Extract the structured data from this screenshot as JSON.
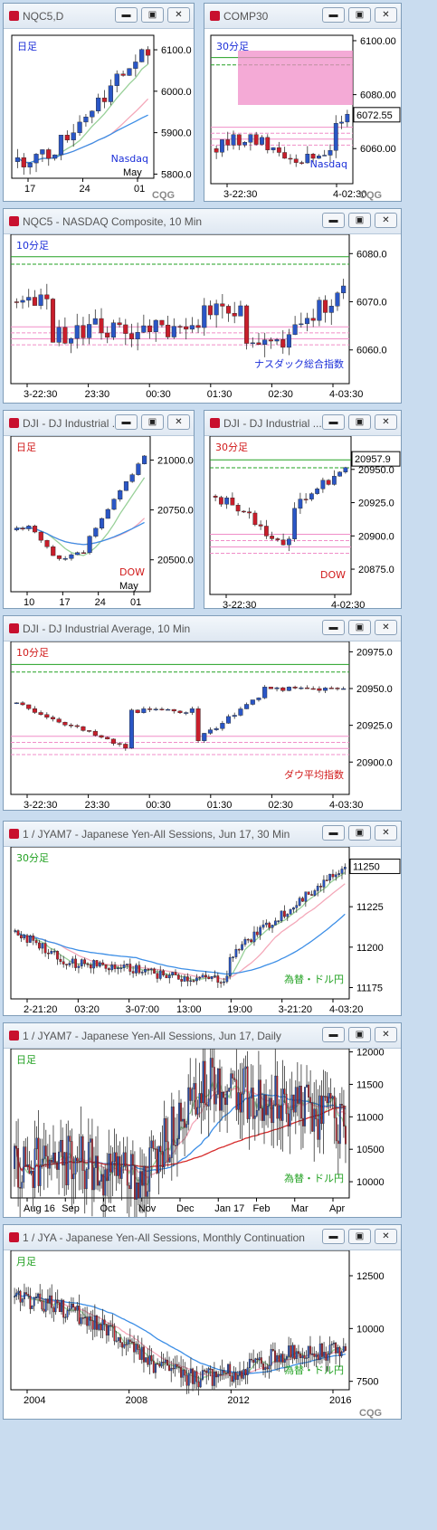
{
  "colors": {
    "up": "#2a56c6",
    "down": "#c81e2b",
    "ma1": "#98d098",
    "ma2": "#f4a8b9",
    "ma3": "#3c8ee6",
    "ma4": "#d62b2b",
    "pink": "#f08ec8",
    "green": "#22a122",
    "text_jp": "#1c2fd8",
    "red_text": "#d11a1a"
  },
  "icons": {
    "minimize": "minimize-icon",
    "restore": "restore-icon",
    "close": "close-icon",
    "logo": "cqg-logo"
  },
  "panels": [
    {
      "id": "nqc5-daily",
      "title": "NQC5,D",
      "label": "日足",
      "label_color": "#1c2fd8",
      "name": "Nasdaq",
      "name_color": "#1c2fd8",
      "yticks": [
        "6100.0",
        "6000.0",
        "5900.0",
        "5800.0"
      ],
      "xticks": [
        "17",
        "24",
        "01"
      ],
      "xsub": "May",
      "logo": "CQG",
      "chart_data": {
        "type": "candlestick",
        "trend": "up",
        "ylim": [
          5790,
          6135
        ],
        "yticks": [
          6100,
          6000,
          5900,
          5800
        ],
        "first_close": 5830,
        "last_close": 6090
      }
    },
    {
      "id": "comp-30",
      "title": "COMP30",
      "label": "30分足",
      "label_color": "#1c2fd8",
      "name": "Nasdaq",
      "name_color": "#1c2fd8",
      "yticks": [
        "6100.00",
        "6080.00",
        "6060.00"
      ],
      "last": "6072.55",
      "xticks": [
        "3-22:30",
        "4-02:30"
      ],
      "logo": "CQG",
      "chart_data": {
        "type": "candlestick",
        "ylim": [
          6047,
          6102
        ],
        "yticks": [
          6100,
          6080,
          6060
        ],
        "last": 6072.55
      }
    },
    {
      "id": "nqc5-10",
      "title": "NQC5 - NASDAQ Composite, 10 Min",
      "label": "10分足",
      "label_color": "#1c2fd8",
      "name": "ナスダック総合指数",
      "name_color": "#1c2fd8",
      "yticks": [
        "6080.0",
        "6070.0",
        "6060.0"
      ],
      "xticks": [
        "3-22:30",
        "23:30",
        "00:30",
        "01:30",
        "02:30",
        "4-03:30"
      ],
      "chart_data": {
        "type": "candlestick",
        "ylim": [
          6053,
          6084
        ],
        "yticks": [
          6080,
          6070,
          6060
        ]
      }
    },
    {
      "id": "dji-daily",
      "title": "DJI - DJ Industrial ...",
      "label": "日足",
      "label_color": "#d11a1a",
      "name": "DOW",
      "name_color": "#d11a1a",
      "yticks": [
        "21000.0",
        "20750.0",
        "20500.0"
      ],
      "xticks": [
        "10",
        "17",
        "24",
        "01"
      ],
      "xsub": "May",
      "chart_data": {
        "type": "candlestick",
        "ylim": [
          20340,
          21120
        ],
        "yticks": [
          21000,
          20750,
          20500
        ]
      }
    },
    {
      "id": "dji-30",
      "title": "DJI - DJ Industrial ...",
      "label": "30分足",
      "label_color": "#d11a1a",
      "name": "DOW",
      "name_color": "#d11a1a",
      "yticks": [
        "20950.0",
        "20925.0",
        "20900.0",
        "20875.0"
      ],
      "last": "20957.9",
      "xticks": [
        "3-22:30",
        "4-02:30"
      ],
      "chart_data": {
        "type": "candlestick",
        "ylim": [
          20856,
          20975
        ],
        "yticks": [
          20950,
          20925,
          20900,
          20875
        ],
        "last": 20957.9
      }
    },
    {
      "id": "dji-10",
      "title": "DJI - DJ Industrial Average, 10 Min",
      "label": "10分足",
      "label_color": "#d11a1a",
      "name": "ダウ平均指数",
      "name_color": "#d11a1a",
      "yticks": [
        "20975.0",
        "20950.0",
        "20925.0",
        "20900.0"
      ],
      "xticks": [
        "3-22:30",
        "23:30",
        "00:30",
        "01:30",
        "02:30",
        "4-03:30"
      ],
      "chart_data": {
        "type": "candlestick",
        "ylim": [
          20878,
          20982
        ],
        "yticks": [
          20975,
          20950,
          20925,
          20900
        ]
      }
    },
    {
      "id": "jyam7-30",
      "title": "1 / JYAM7 - Japanese Yen-All Sessions, Jun 17, 30 Min",
      "label": "30分足",
      "label_color": "#22a122",
      "name": "為替・ドル円",
      "name_color": "#22a122",
      "yticks": [
        "11250",
        "11225",
        "11200",
        "11175"
      ],
      "last": "11250",
      "xticks": [
        "2-21:20",
        "03:20",
        "3-07:00",
        "13:00",
        "19:00",
        "3-21:20",
        "4-03:20"
      ],
      "chart_data": {
        "type": "candlestick",
        "ylim": [
          11168,
          11262
        ],
        "yticks": [
          11250,
          11225,
          11200,
          11175
        ],
        "last": 11250
      }
    },
    {
      "id": "jyam7-daily",
      "title": "1 / JYAM7 - Japanese Yen-All Sessions, Jun 17, Daily",
      "label": "日足",
      "label_color": "#22a122",
      "name": "為替・ドル円",
      "name_color": "#22a122",
      "yticks": [
        "12000",
        "11500",
        "11000",
        "10500",
        "10000"
      ],
      "xticks": [
        "Aug 16",
        "Sep",
        "Oct",
        "Nov",
        "Dec",
        "Jan 17",
        "Feb",
        "Mar",
        "Apr"
      ],
      "chart_data": {
        "type": "candlestick",
        "ylim": [
          9750,
          12050
        ],
        "yticks": [
          12000,
          11500,
          11000,
          10500,
          10000
        ]
      }
    },
    {
      "id": "jya-monthly",
      "title": "1 / JYA - Japanese Yen-All Sessions, Monthly Continuation",
      "label": "月足",
      "label_color": "#22a122",
      "name": "為替・ドル円",
      "name_color": "#22a122",
      "yticks": [
        "12500",
        "10000",
        "7500"
      ],
      "xticks": [
        "2004",
        "2008",
        "2012",
        "2016"
      ],
      "logo": "CQG",
      "chart_data": {
        "type": "candlestick",
        "ylim": [
          7100,
          13700
        ],
        "yticks": [
          12500,
          10000,
          7500
        ]
      }
    }
  ]
}
